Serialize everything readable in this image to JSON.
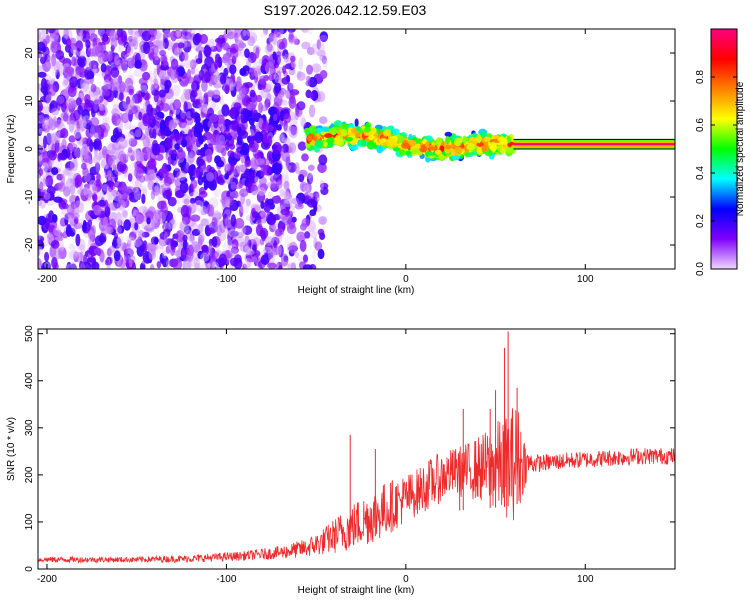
{
  "title": "S197.2026.042.12.59.E03",
  "chart_data": [
    {
      "type": "heatmap",
      "xlabel": "Height of straight line (km)",
      "ylabel": "Frequency (Hz)",
      "xlim": [
        -205,
        150
      ],
      "ylim": [
        -25,
        25
      ],
      "x_ticks": [
        -200,
        -100,
        0,
        100
      ],
      "y_ticks": [
        -20,
        -10,
        0,
        10,
        20
      ],
      "colorbar": {
        "label": "Normalized spectral amplitude",
        "range": [
          0,
          1
        ],
        "ticks": [
          0.0,
          0.2,
          0.4,
          0.6,
          0.8
        ],
        "colors": [
          "#f0d8ff",
          "#8000ff",
          "#0000ff",
          "#00ffff",
          "#00ff00",
          "#ffff00",
          "#ff8000",
          "#ff0000",
          "#ff0080"
        ]
      },
      "regions": [
        {
          "x_range": [
            -205,
            -55
          ],
          "freq_range": [
            -25,
            25
          ],
          "amplitude_range": [
            0.0,
            0.15
          ],
          "description_hidden": true
        },
        {
          "x_range": [
            -55,
            60
          ],
          "freq_center": [
            [
              -55,
              2
            ],
            [
              -35,
              3
            ],
            [
              -20,
              3
            ],
            [
              0,
              1
            ],
            [
              20,
              0
            ],
            [
              40,
              1
            ],
            [
              60,
              1
            ]
          ],
          "amplitude_range": [
            0.2,
            0.9
          ]
        },
        {
          "x_range": [
            60,
            150
          ],
          "freq_center": 1,
          "freq_width": 2,
          "amplitude_range": [
            0.6,
            1.0
          ]
        }
      ]
    },
    {
      "type": "line",
      "xlabel": "Height of straight line (km)",
      "ylabel": "SNR (10 * v/v)",
      "xlim": [
        -205,
        150
      ],
      "ylim": [
        0,
        510
      ],
      "x_ticks": [
        -200,
        -100,
        0,
        100
      ],
      "y_ticks": [
        0,
        100,
        200,
        300,
        400,
        500
      ],
      "color": "#ee2a2a",
      "series": [
        {
          "name": "SNR",
          "x": [
            -205,
            -180,
            -150,
            -120,
            -90,
            -70,
            -55,
            -45,
            -35,
            -25,
            -15,
            -5,
            5,
            15,
            25,
            35,
            45,
            55,
            62,
            68,
            75,
            90,
            110,
            130,
            150
          ],
          "values": [
            20,
            20,
            20,
            22,
            28,
            35,
            45,
            60,
            80,
            100,
            120,
            140,
            160,
            185,
            205,
            210,
            215,
            220,
            230,
            225,
            225,
            230,
            235,
            240,
            240
          ],
          "spread": [
            6,
            6,
            6,
            8,
            10,
            14,
            20,
            30,
            45,
            55,
            60,
            55,
            50,
            55,
            50,
            60,
            80,
            110,
            130,
            25,
            18,
            18,
            18,
            18,
            18
          ],
          "peaks": [
            [
              -31,
              285
            ],
            [
              -17,
              255
            ],
            [
              30,
              250
            ],
            [
              32,
              340
            ],
            [
              47,
              340
            ],
            [
              50,
              380
            ],
            [
              55,
              470
            ],
            [
              57,
              505
            ],
            [
              62,
              385
            ]
          ]
        }
      ]
    }
  ]
}
